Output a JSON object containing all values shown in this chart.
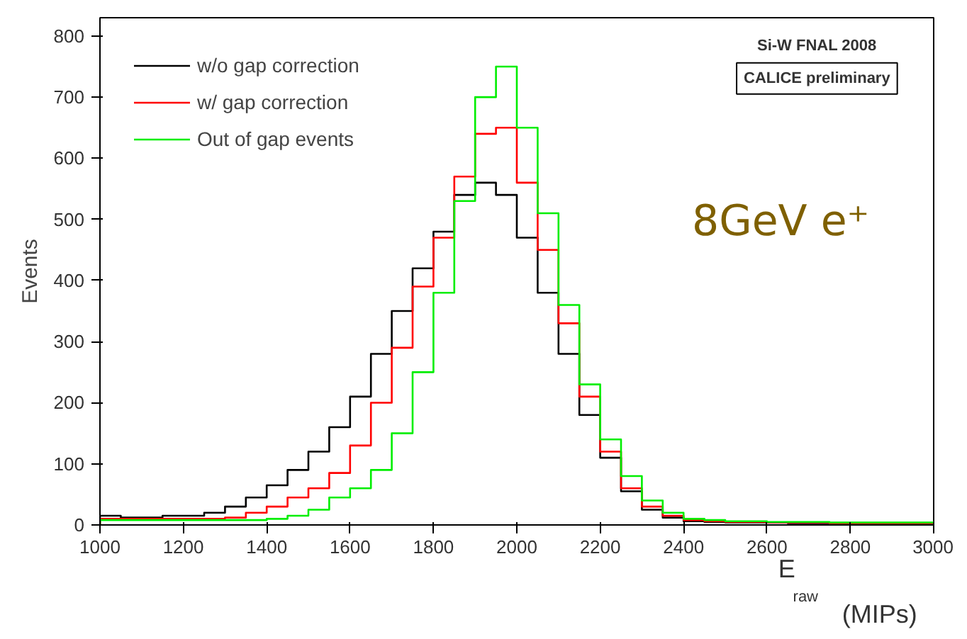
{
  "chart_data": {
    "type": "histogram",
    "xlabel": "E$_{raw}$ (MIPs)",
    "ylabel": "Events",
    "bins": [
      1000,
      1050,
      1100,
      1150,
      1200,
      1250,
      1300,
      1350,
      1400,
      1450,
      1500,
      1550,
      1600,
      1650,
      1700,
      1750,
      1800,
      1850,
      1900,
      1950,
      2000,
      2050,
      2100,
      2150,
      2200,
      2250,
      2300,
      2350,
      2400,
      2450,
      2500,
      2550,
      2600,
      2650,
      2700,
      2750,
      2800,
      2850,
      2900,
      2950,
      3000
    ],
    "series": [
      {
        "name": "w/o gap correction",
        "color": "#000000",
        "values": [
          15,
          12,
          12,
          15,
          15,
          20,
          30,
          45,
          65,
          90,
          120,
          160,
          210,
          280,
          350,
          420,
          480,
          540,
          560,
          540,
          470,
          380,
          280,
          180,
          110,
          55,
          25,
          12,
          6,
          5,
          4,
          4,
          4,
          3,
          3,
          3,
          3,
          3,
          3,
          3
        ]
      },
      {
        "name": "w/ gap correction",
        "color": "#ff0000",
        "values": [
          10,
          10,
          10,
          10,
          10,
          10,
          12,
          20,
          30,
          45,
          60,
          85,
          130,
          200,
          290,
          390,
          470,
          570,
          640,
          650,
          560,
          450,
          330,
          210,
          120,
          60,
          30,
          15,
          8,
          6,
          5,
          5,
          4,
          4,
          4,
          3,
          3,
          3,
          3,
          3
        ]
      },
      {
        "name": "Out of gap events",
        "color": "#00ee00",
        "values": [
          8,
          8,
          8,
          8,
          8,
          8,
          8,
          8,
          10,
          15,
          25,
          45,
          60,
          90,
          150,
          250,
          380,
          530,
          700,
          750,
          650,
          510,
          360,
          230,
          140,
          80,
          40,
          20,
          10,
          8,
          6,
          6,
          5,
          5,
          5,
          4,
          4,
          4,
          4,
          4
        ]
      }
    ],
    "xlim": [
      1000,
      3000
    ],
    "ylim": [
      0,
      830
    ],
    "xticks": [
      1000,
      1200,
      1400,
      1600,
      1800,
      2000,
      2200,
      2400,
      2600,
      2800,
      3000
    ],
    "yticks": [
      0,
      100,
      200,
      300,
      400,
      500,
      600,
      700,
      800
    ],
    "grid": false,
    "legend": "top left",
    "annotations": [
      "Si-W FNAL 2008",
      "CALICE preliminary",
      "8GeV e⁺"
    ]
  }
}
